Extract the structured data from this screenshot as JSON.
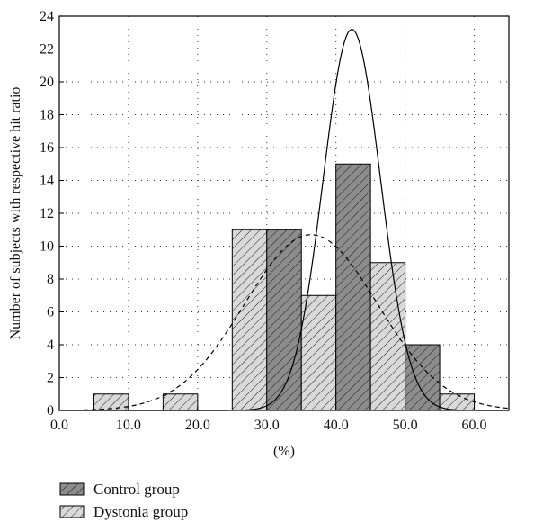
{
  "chart_data": {
    "type": "bar",
    "xlabel": "(%)",
    "ylabel": "Number of subjects with respective hit ratio",
    "xlim": [
      0,
      65
    ],
    "ylim": [
      0,
      24
    ],
    "x_ticks": [
      "0.0",
      "10.0",
      "20.0",
      "30.0",
      "40.0",
      "50.0",
      "60.0"
    ],
    "y_ticks": [
      "0",
      "2",
      "4",
      "6",
      "8",
      "10",
      "12",
      "14",
      "16",
      "18",
      "20",
      "22",
      "24"
    ],
    "grid": "dotted",
    "legend_position": "bottom-left",
    "bins": [
      {
        "from": 5,
        "to": 10,
        "control": 0,
        "dystonia": 1
      },
      {
        "from": 15,
        "to": 20,
        "control": 0,
        "dystonia": 1
      },
      {
        "from": 25,
        "to": 30,
        "control": 0,
        "dystonia": 11
      },
      {
        "from": 30,
        "to": 35,
        "control": 11,
        "dystonia": 0
      },
      {
        "from": 35,
        "to": 40,
        "control": 0,
        "dystonia": 7
      },
      {
        "from": 40,
        "to": 45,
        "control": 15,
        "dystonia": 0
      },
      {
        "from": 45,
        "to": 50,
        "control": 0,
        "dystonia": 9
      },
      {
        "from": 50,
        "to": 55,
        "control": 4,
        "dystonia": 0
      },
      {
        "from": 55,
        "to": 60,
        "control": 0,
        "dystonia": 1
      }
    ],
    "series": [
      {
        "name": "Control group",
        "pattern": "crosshatch",
        "color": "#8c8c8c",
        "fit": {
          "style": "solid",
          "mean": 42.3,
          "sd": 4.15,
          "peak": 23.2
        }
      },
      {
        "name": "Dystonia group",
        "pattern": "diagonal",
        "color": "#d9d9d9",
        "fit": {
          "style": "dashed",
          "mean": 36.4,
          "sd": 9.6,
          "peak": 10.7
        }
      }
    ]
  }
}
